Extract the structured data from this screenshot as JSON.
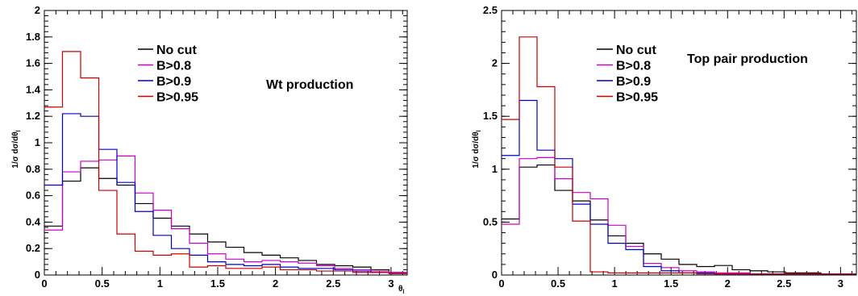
{
  "chart_data": [
    {
      "type": "line",
      "annotation": "Wt production",
      "ylabel": "1/σ dσ/dθ",
      "ylabel_sub": "l",
      "xlabel": "θ",
      "xlabel_sub": "l",
      "xlim": [
        0,
        3.14
      ],
      "ylim": [
        0,
        2
      ],
      "x_ticks": [
        0,
        0.5,
        1,
        1.5,
        2,
        2.5,
        3
      ],
      "x_tick_labels": [
        "0",
        "0.5",
        "1",
        "1.5",
        "2",
        "2.5",
        "3"
      ],
      "y_ticks": [
        0,
        0.2,
        0.4,
        0.6,
        0.8,
        1,
        1.2,
        1.4,
        1.6,
        1.8,
        2
      ],
      "y_tick_labels": [
        "0",
        "0.2",
        "0.4",
        "0.6",
        "0.8",
        "1",
        "1.2",
        "1.4",
        "1.6",
        "1.8",
        "2"
      ],
      "legend_position": "top-left",
      "bin_edges": [
        0,
        0.157,
        0.314,
        0.471,
        0.628,
        0.785,
        0.942,
        1.099,
        1.256,
        1.413,
        1.57,
        1.727,
        1.884,
        2.041,
        2.198,
        2.355,
        2.512,
        2.669,
        2.826,
        2.983,
        3.14
      ],
      "series": [
        {
          "name": "No cut",
          "color": "#000000",
          "values": [
            0.37,
            0.71,
            0.81,
            0.73,
            0.68,
            0.54,
            0.43,
            0.37,
            0.31,
            0.25,
            0.21,
            0.17,
            0.15,
            0.13,
            0.11,
            0.08,
            0.07,
            0.06,
            0.04,
            0.02
          ]
        },
        {
          "name": "B>0.8",
          "color": "#cc00cc",
          "values": [
            0.34,
            0.78,
            0.86,
            0.87,
            0.9,
            0.62,
            0.49,
            0.35,
            0.24,
            0.16,
            0.12,
            0.1,
            0.11,
            0.1,
            0.09,
            0.07,
            0.05,
            0.04,
            0.03,
            0.02
          ]
        },
        {
          "name": "B>0.9",
          "color": "#0000cc",
          "values": [
            0.68,
            1.22,
            1.2,
            0.95,
            0.7,
            0.48,
            0.3,
            0.2,
            0.15,
            0.1,
            0.08,
            0.07,
            0.08,
            0.06,
            0.05,
            0.05,
            0.04,
            0.03,
            0.02,
            0.01
          ]
        },
        {
          "name": "B>0.95",
          "color": "#cc0000",
          "values": [
            1.27,
            1.69,
            1.49,
            0.64,
            0.31,
            0.18,
            0.15,
            0.16,
            0.06,
            0.07,
            0.05,
            0.05,
            0.06,
            0.04,
            0.04,
            0.03,
            0.03,
            0.02,
            0.02,
            0.01
          ]
        }
      ]
    },
    {
      "type": "line",
      "annotation": "Top pair production",
      "ylabel": "1/σ dσ/dθ",
      "ylabel_sub": "l",
      "xlabel": "",
      "xlim": [
        0,
        3.14
      ],
      "ylim": [
        0,
        2.5
      ],
      "x_ticks": [
        0,
        0.5,
        1,
        1.5,
        2,
        2.5,
        3
      ],
      "x_tick_labels": [
        "0",
        "0.5",
        "1",
        "1.5",
        "2",
        "2.5",
        "3"
      ],
      "y_ticks": [
        0,
        0.5,
        1,
        1.5,
        2,
        2.5
      ],
      "y_tick_labels": [
        "0",
        "0.5",
        "1",
        "1.5",
        "2",
        "2.5"
      ],
      "legend_position": "top-left",
      "bin_edges": [
        0,
        0.157,
        0.314,
        0.471,
        0.628,
        0.785,
        0.942,
        1.099,
        1.256,
        1.413,
        1.57,
        1.727,
        1.884,
        2.041,
        2.198,
        2.355,
        2.512,
        2.669,
        2.826,
        2.983,
        3.14
      ],
      "series": [
        {
          "name": "No cut",
          "color": "#000000",
          "values": [
            0.53,
            1.02,
            1.04,
            0.8,
            0.7,
            0.52,
            0.37,
            0.3,
            0.2,
            0.15,
            0.1,
            0.08,
            0.09,
            0.05,
            0.04,
            0.03,
            0.02,
            0.02,
            0.01,
            0.01
          ]
        },
        {
          "name": "B>0.8",
          "color": "#cc00cc",
          "values": [
            0.48,
            1.1,
            1.11,
            0.91,
            0.78,
            0.72,
            0.47,
            0.27,
            0.11,
            0.07,
            0.04,
            0.03,
            0.02,
            0.02,
            0.01,
            0.01,
            0.01,
            0.01,
            0.01,
            0.01
          ]
        },
        {
          "name": "B>0.9",
          "color": "#0000cc",
          "values": [
            1.13,
            1.65,
            1.18,
            1.1,
            0.67,
            0.48,
            0.3,
            0.24,
            0.08,
            0.04,
            0.02,
            0.02,
            0.01,
            0.01,
            0.01,
            0.01,
            0.01,
            0.01,
            0.01,
            0.01
          ]
        },
        {
          "name": "B>0.95",
          "color": "#cc0000",
          "values": [
            1.47,
            2.25,
            1.78,
            1.02,
            0.51,
            0.03,
            0.02,
            0.02,
            0.02,
            0.02,
            0.02,
            0.01,
            0.01,
            0.01,
            0.01,
            0.01,
            0.01,
            0.01,
            0.01,
            0.01
          ]
        }
      ]
    }
  ]
}
